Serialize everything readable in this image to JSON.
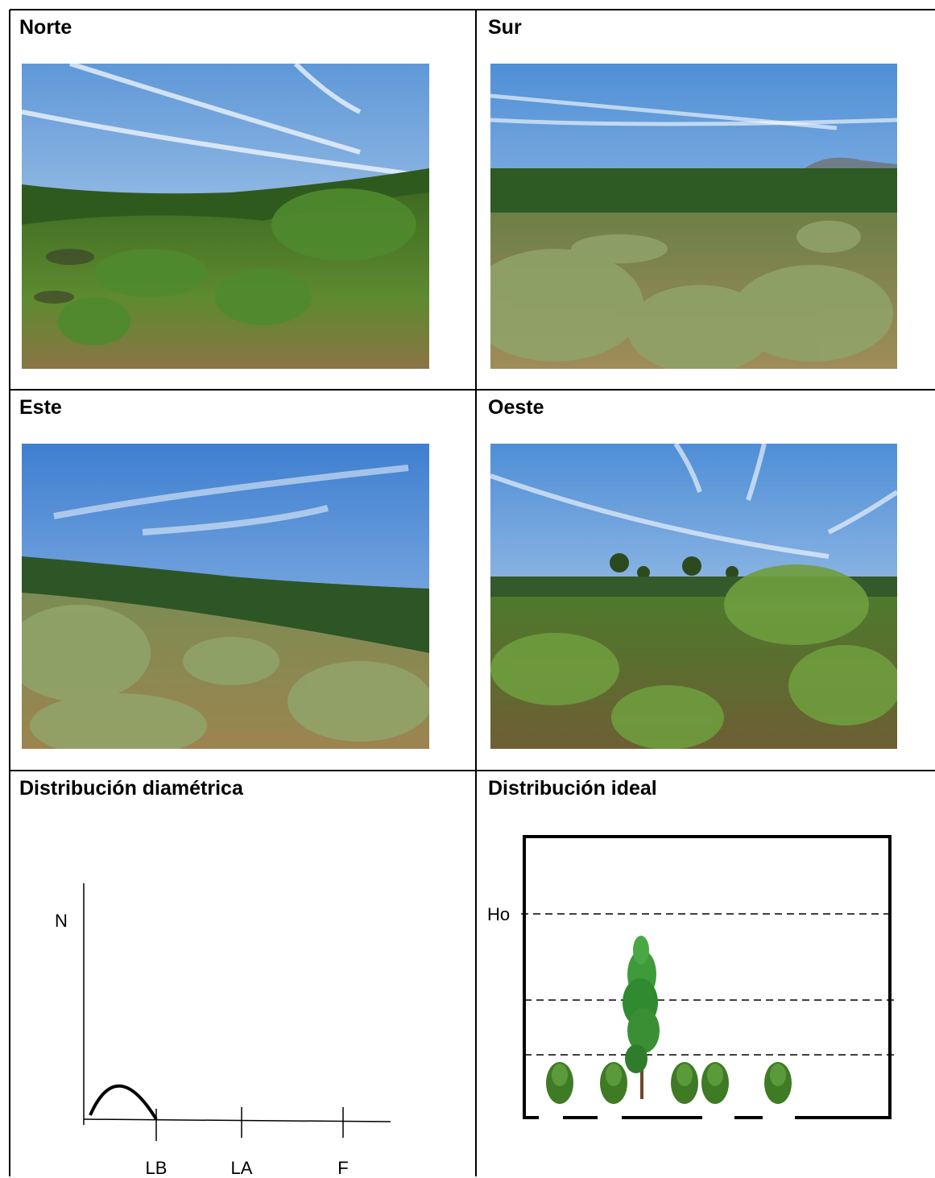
{
  "cells": {
    "north": {
      "title": "Norte"
    },
    "south": {
      "title": "Sur"
    },
    "east": {
      "title": "Este"
    },
    "west": {
      "title": "Oeste"
    },
    "diametric": {
      "title": "Distribución diamétrica"
    },
    "ideal": {
      "title": "Distribución ideal"
    }
  },
  "photos": {
    "north": {
      "subject": "landscape-photo",
      "sky": "#7fb2e4",
      "vegetation": "#4f7a2c",
      "ground": "#8a7444"
    },
    "south": {
      "subject": "landscape-photo",
      "sky": "#6ea3df",
      "vegetation": "#7e8f57",
      "ground": "#a08c58"
    },
    "east": {
      "subject": "landscape-photo",
      "sky": "#5b93d9",
      "vegetation": "#7b8c52",
      "ground": "#9c8450"
    },
    "west": {
      "subject": "landscape-photo",
      "sky": "#6fa4de",
      "vegetation": "#567a32",
      "ground": "#7e6c3c"
    }
  },
  "diametric_chart": {
    "y_label": "N",
    "ticks": [
      "LB",
      "LA",
      "F"
    ]
  },
  "ideal_chart": {
    "height_label": "Ho",
    "shrub_count": 5,
    "tree_count": 1
  },
  "colors": {
    "border": "#000000",
    "shrub": "#3f7a24",
    "tree": "#3e9a3a",
    "trunk": "#6b4a2b"
  }
}
